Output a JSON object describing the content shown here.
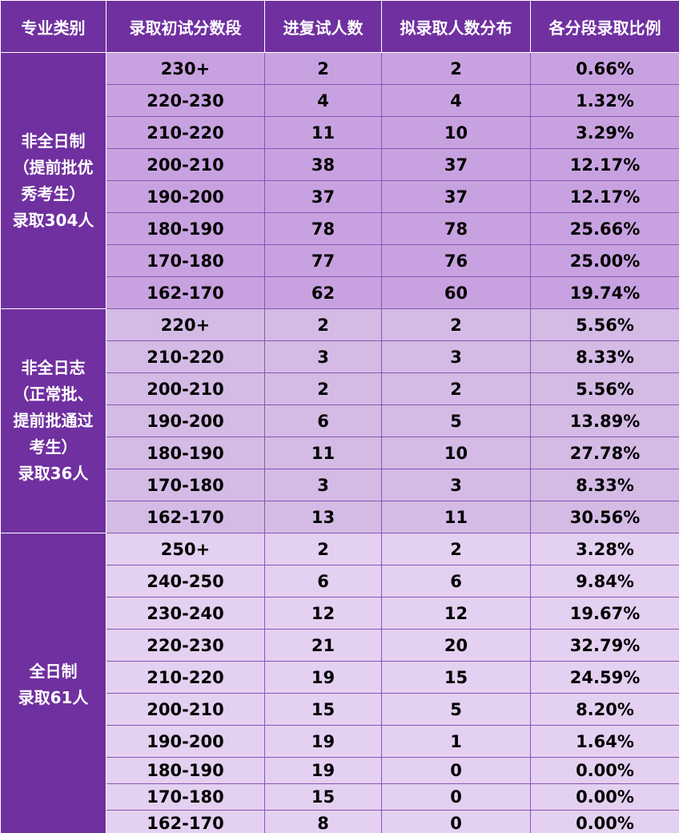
{
  "header": {
    "col1": "专业类别",
    "col2": "录取初试分数段",
    "col3": "进复试人数",
    "col4": "拟录取人数分布",
    "col5": "各分段录取比例"
  },
  "groups": [
    {
      "category_lines": [
        "非全日制",
        "（提前批优",
        "秀考生）",
        "录取304人"
      ],
      "rows": [
        {
          "range": "230+",
          "interview": "2",
          "admitted": "2",
          "ratio": "0.66%"
        },
        {
          "range": "220-230",
          "interview": "4",
          "admitted": "4",
          "ratio": "1.32%"
        },
        {
          "range": "210-220",
          "interview": "11",
          "admitted": "10",
          "ratio": "3.29%"
        },
        {
          "range": "200-210",
          "interview": "38",
          "admitted": "37",
          "ratio": "12.17%"
        },
        {
          "range": "190-200",
          "interview": "37",
          "admitted": "37",
          "ratio": "12.17%"
        },
        {
          "range": "180-190",
          "interview": "78",
          "admitted": "78",
          "ratio": "25.66%"
        },
        {
          "range": "170-180",
          "interview": "77",
          "admitted": "76",
          "ratio": "25.00%"
        },
        {
          "range": "162-170",
          "interview": "62",
          "admitted": "60",
          "ratio": "19.74%"
        }
      ]
    },
    {
      "category_lines": [
        "非全日志",
        "（正常批、",
        "提前批通过",
        "考生）",
        "录取36人"
      ],
      "rows": [
        {
          "range": "220+",
          "interview": "2",
          "admitted": "2",
          "ratio": "5.56%"
        },
        {
          "range": "210-220",
          "interview": "3",
          "admitted": "3",
          "ratio": "8.33%"
        },
        {
          "range": "200-210",
          "interview": "2",
          "admitted": "2",
          "ratio": "5.56%"
        },
        {
          "range": "190-200",
          "interview": "6",
          "admitted": "5",
          "ratio": "13.89%"
        },
        {
          "range": "180-190",
          "interview": "11",
          "admitted": "10",
          "ratio": "27.78%"
        },
        {
          "range": "170-180",
          "interview": "3",
          "admitted": "3",
          "ratio": "8.33%"
        },
        {
          "range": "162-170",
          "interview": "13",
          "admitted": "11",
          "ratio": "30.56%"
        }
      ]
    },
    {
      "category_lines": [
        "全日制",
        "录取61人"
      ],
      "rows": [
        {
          "range": "250+",
          "interview": "2",
          "admitted": "2",
          "ratio": "3.28%"
        },
        {
          "range": "240-250",
          "interview": "6",
          "admitted": "6",
          "ratio": "9.84%"
        },
        {
          "range": "230-240",
          "interview": "12",
          "admitted": "12",
          "ratio": "19.67%"
        },
        {
          "range": "220-230",
          "interview": "21",
          "admitted": "20",
          "ratio": "32.79%"
        },
        {
          "range": "210-220",
          "interview": "19",
          "admitted": "15",
          "ratio": "24.59%"
        },
        {
          "range": "200-210",
          "interview": "15",
          "admitted": "5",
          "ratio": "8.20%"
        },
        {
          "range": "190-200",
          "interview": "19",
          "admitted": "1",
          "ratio": "1.64%"
        },
        {
          "range": "180-190",
          "interview": "19",
          "admitted": "0",
          "ratio": "0.00%"
        },
        {
          "range": "170-180",
          "interview": "15",
          "admitted": "0",
          "ratio": "0.00%"
        },
        {
          "range": "162-170",
          "interview": "8",
          "admitted": "0",
          "ratio": "0.00%"
        }
      ]
    }
  ],
  "colors": {
    "header_bg": "#7030a0",
    "group1_bg": "#c8a2e0",
    "group2_bg": "#d4bbe5",
    "group3_bg": "#e4d0f0"
  }
}
